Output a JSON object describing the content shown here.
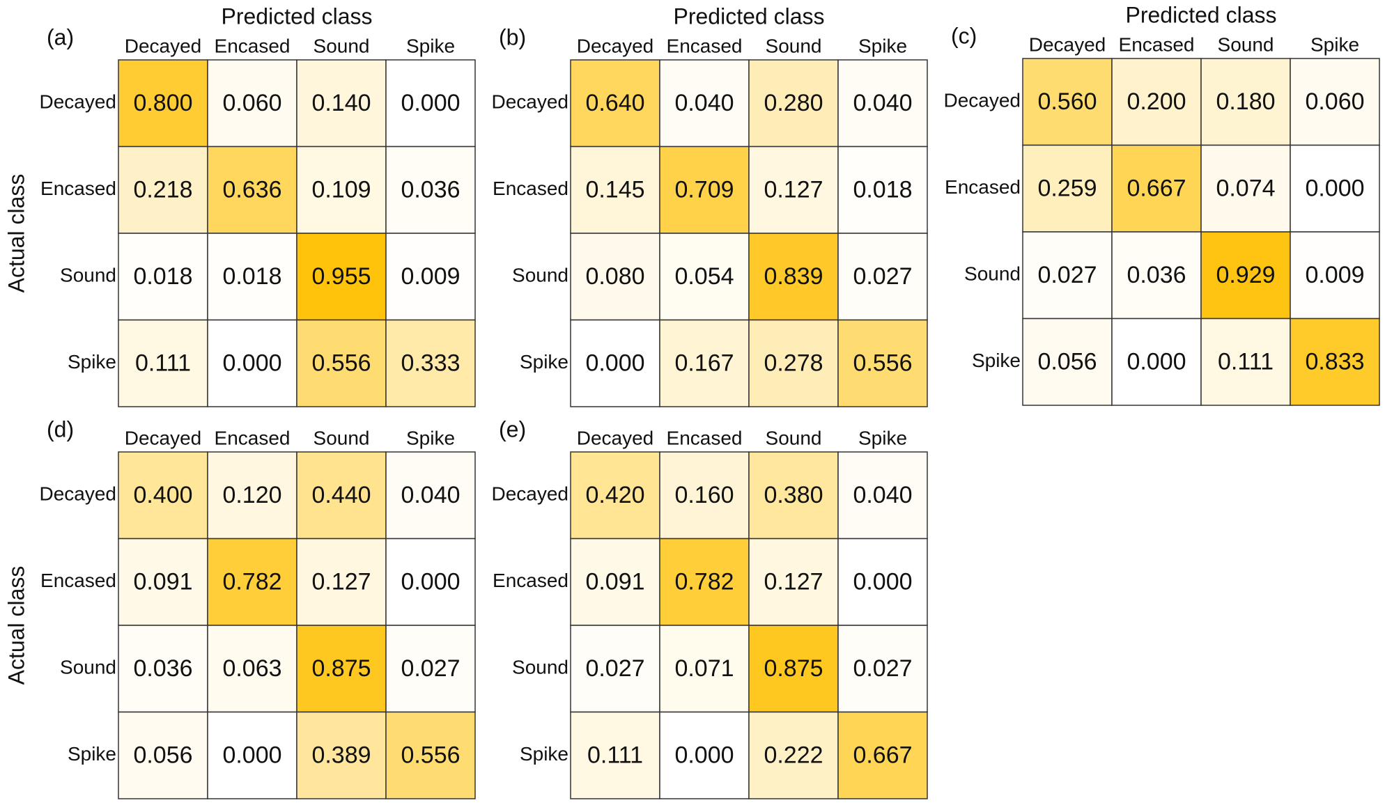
{
  "chart_data": [
    {
      "type": "heatmap",
      "panel_label": "(a)",
      "x_label": "Predicted class",
      "y_label": "Actual class",
      "colors": [
        "#ffffff",
        "#ffc000"
      ],
      "x_categories": [
        "Decayed",
        "Encased",
        "Sound",
        "Spike"
      ],
      "y_categories": [
        "Decayed",
        "Encased",
        "Sound",
        "Spike"
      ],
      "values": [
        [
          0.8,
          0.06,
          0.14,
          0
        ],
        [
          0.218,
          0.636,
          0.109,
          0.036
        ],
        [
          0.018,
          0.018,
          0.955,
          0.009
        ],
        [
          0.111,
          0,
          0.556,
          0.333
        ]
      ],
      "value_labels": [
        [
          "0.800",
          "0.060",
          "0.140",
          "0.000"
        ],
        [
          "0.218",
          "0.636",
          "0.109",
          "0.036"
        ],
        [
          "0.018",
          "0.018",
          "0.955",
          "0.009"
        ],
        [
          "0.111",
          "0.000",
          "0.556",
          "0.333"
        ]
      ]
    },
    {
      "type": "heatmap",
      "panel_label": "(b)",
      "x_label": "Predicted class",
      "colors": [
        "#ffffff",
        "#ffc000"
      ],
      "x_categories": [
        "Decayed",
        "Encased",
        "Sound",
        "Spike"
      ],
      "y_categories": [
        "Decayed",
        "Encased",
        "Sound",
        "Spike"
      ],
      "values": [
        [
          0.64,
          0.04,
          0.28,
          0.04
        ],
        [
          0.145,
          0.709,
          0.127,
          0.018
        ],
        [
          0.08,
          0.054,
          0.839,
          0.027
        ],
        [
          0,
          0.167,
          0.278,
          0.556
        ]
      ],
      "value_labels": [
        [
          "0.640",
          "0.040",
          "0.280",
          "0.040"
        ],
        [
          "0.145",
          "0.709",
          "0.127",
          "0.018"
        ],
        [
          "0.080",
          "0.054",
          "0.839",
          "0.027"
        ],
        [
          "0.000",
          "0.167",
          "0.278",
          "0.556"
        ]
      ]
    },
    {
      "type": "heatmap",
      "panel_label": "(c)",
      "x_label": "Predicted class",
      "colors": [
        "#ffffff",
        "#ffc000"
      ],
      "x_categories": [
        "Decayed",
        "Encased",
        "Sound",
        "Spike"
      ],
      "y_categories": [
        "Decayed",
        "Encased",
        "Sound",
        "Spike"
      ],
      "values": [
        [
          0.56,
          0.2,
          0.18,
          0.06
        ],
        [
          0.259,
          0.667,
          0.074,
          0
        ],
        [
          0.027,
          0.036,
          0.929,
          0.009
        ],
        [
          0.056,
          0,
          0.111,
          0.833
        ]
      ],
      "value_labels": [
        [
          "0.560",
          "0.200",
          "0.180",
          "0.060"
        ],
        [
          "0.259",
          "0.667",
          "0.074",
          "0.000"
        ],
        [
          "0.027",
          "0.036",
          "0.929",
          "0.009"
        ],
        [
          "0.056",
          "0.000",
          "0.111",
          "0.833"
        ]
      ]
    },
    {
      "type": "heatmap",
      "panel_label": "(d)",
      "y_label": "Actual class",
      "colors": [
        "#ffffff",
        "#ffc000"
      ],
      "x_categories": [
        "Decayed",
        "Encased",
        "Sound",
        "Spike"
      ],
      "y_categories": [
        "Decayed",
        "Encased",
        "Sound",
        "Spike"
      ],
      "values": [
        [
          0.4,
          0.12,
          0.44,
          0.04
        ],
        [
          0.091,
          0.782,
          0.127,
          0
        ],
        [
          0.036,
          0.063,
          0.875,
          0.027
        ],
        [
          0.056,
          0,
          0.389,
          0.556
        ]
      ],
      "value_labels": [
        [
          "0.400",
          "0.120",
          "0.440",
          "0.040"
        ],
        [
          "0.091",
          "0.782",
          "0.127",
          "0.000"
        ],
        [
          "0.036",
          "0.063",
          "0.875",
          "0.027"
        ],
        [
          "0.056",
          "0.000",
          "0.389",
          "0.556"
        ]
      ]
    },
    {
      "type": "heatmap",
      "panel_label": "(e)",
      "colors": [
        "#ffffff",
        "#ffc000"
      ],
      "x_categories": [
        "Decayed",
        "Encased",
        "Sound",
        "Spike"
      ],
      "y_categories": [
        "Decayed",
        "Encased",
        "Sound",
        "Spike"
      ],
      "values": [
        [
          0.42,
          0.16,
          0.38,
          0.04
        ],
        [
          0.091,
          0.782,
          0.127,
          0
        ],
        [
          0.027,
          0.071,
          0.875,
          0.027
        ],
        [
          0.111,
          0,
          0.222,
          0.667
        ]
      ],
      "value_labels": [
        [
          "0.420",
          "0.160",
          "0.380",
          "0.040"
        ],
        [
          "0.091",
          "0.782",
          "0.127",
          "0.000"
        ],
        [
          "0.027",
          "0.071",
          "0.875",
          "0.027"
        ],
        [
          "0.111",
          "0.000",
          "0.222",
          "0.667"
        ]
      ]
    }
  ]
}
